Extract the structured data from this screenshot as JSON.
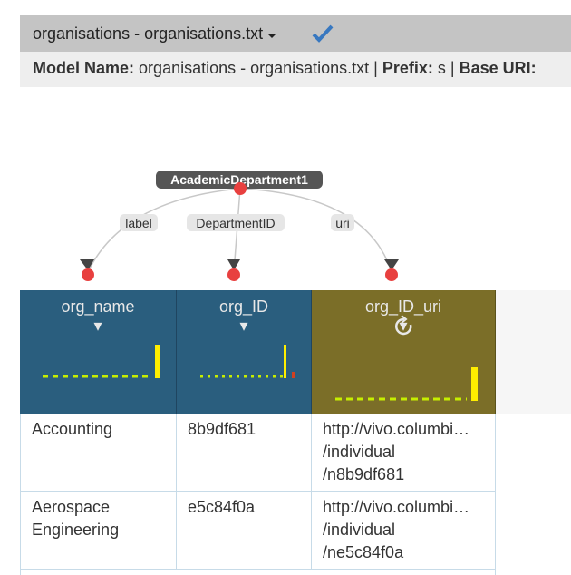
{
  "header": {
    "title": "organisations - organisations.txt"
  },
  "model_bar": {
    "items": [
      {
        "label": "Model Name:",
        "value": "organisations - organisations.txt |"
      },
      {
        "label": "Prefix:",
        "value": "s |"
      },
      {
        "label": "Base URI:"
      }
    ]
  },
  "graph": {
    "node": {
      "label": "AcademicDepartment1"
    },
    "edges": [
      {
        "label": "label"
      },
      {
        "label": "DepartmentID"
      },
      {
        "label": "uri"
      }
    ]
  },
  "table": {
    "columns": [
      "org_name",
      "org_ID",
      "org_ID_uri"
    ],
    "rows": [
      [
        "Accounting",
        "8b9df681",
        [
          "http://vivo.columbi…",
          "/individual",
          "/n8b9df681"
        ]
      ],
      [
        "Aerospace Engineering",
        "e5c84f0a",
        [
          "http://vivo.columbi…",
          "/individual",
          "/ne5c84f0a"
        ]
      ]
    ]
  }
}
